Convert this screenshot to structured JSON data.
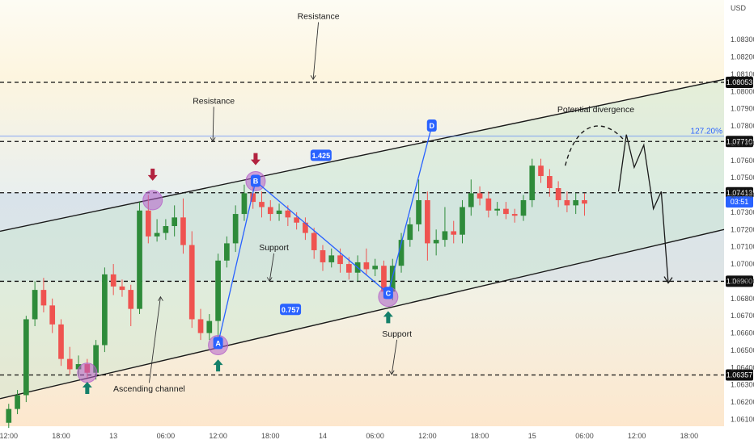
{
  "chart_data": {
    "type": "candlestick",
    "currency_label": "USD",
    "colors": {
      "up": "#2e8b3a",
      "down": "#ef5350",
      "pattern_line": "#2962ff",
      "channel_line": "#1a1a1a",
      "pivot_circle": "#b45fc8",
      "arrow_up": "#15806a",
      "arrow_down": "#b2233f",
      "countdown_badge": "#2962ff",
      "fib_label": "#2962ff"
    },
    "x_axis": {
      "labels": [
        "12:00",
        "18:00",
        "13",
        "06:00",
        "12:00",
        "18:00",
        "14",
        "06:00",
        "12:00",
        "18:00",
        "15",
        "06:00",
        "12:00",
        "18:00"
      ],
      "hour_offsets": [
        0,
        6,
        12,
        18,
        24,
        30,
        36,
        42,
        48,
        54,
        60,
        66,
        72,
        78
      ],
      "range_hours": [
        -1,
        82
      ]
    },
    "y_axis": {
      "range": [
        1.0606,
        1.0853
      ],
      "ticks": [
        "1.06100",
        "1.06200",
        "1.06300",
        "1.06400",
        "1.06500",
        "1.06600",
        "1.06700",
        "1.06800",
        "1.06900",
        "1.07000",
        "1.07100",
        "1.07200",
        "1.07300",
        "1.07400",
        "1.07500",
        "1.07600",
        "1.07700",
        "1.07800",
        "1.07900",
        "1.08000",
        "1.08100",
        "1.08200",
        "1.08300"
      ],
      "tick_values": [
        1.061,
        1.062,
        1.063,
        1.064,
        1.065,
        1.066,
        1.067,
        1.068,
        1.069,
        1.07,
        1.071,
        1.072,
        1.073,
        1.074,
        1.075,
        1.076,
        1.077,
        1.078,
        1.079,
        1.08,
        1.081,
        1.082,
        1.083
      ]
    },
    "levels": [
      {
        "price": 1.08053,
        "label": "1.08053"
      },
      {
        "price": 1.0771,
        "label": "1.07710"
      },
      {
        "price": 1.07413,
        "label": "1.07413"
      },
      {
        "price": 1.069,
        "label": "1.06900"
      },
      {
        "price": 1.06357,
        "label": "1.06357"
      }
    ],
    "current_price": {
      "price": 1.0736,
      "countdown": "03:51"
    },
    "fib_extension": {
      "label": "127.20%",
      "price": 1.07755
    },
    "channel": {
      "upper": [
        {
          "t": -1,
          "p": 1.0719
        },
        {
          "t": 82,
          "p": 1.0807
        }
      ],
      "lower": [
        {
          "t": -1,
          "p": 1.0622
        },
        {
          "t": 82,
          "p": 1.072
        }
      ]
    },
    "abcd": [
      {
        "label": "A",
        "t": 24,
        "p": 1.0654
      },
      {
        "label": "B",
        "t": 28.3,
        "p": 1.0748
      },
      {
        "label": "C",
        "t": 43.5,
        "p": 1.0683
      },
      {
        "label": "D",
        "t": 48.5,
        "p": 1.078
      }
    ],
    "ratios": [
      {
        "label": "1.425",
        "t": 35.8,
        "p": 1.0763
      },
      {
        "label": "0.757",
        "t": 32.3,
        "p": 1.06737
      }
    ],
    "pivots": [
      {
        "t": 9,
        "p": 1.0637
      },
      {
        "t": 16.5,
        "p": 1.0737
      },
      {
        "t": 24,
        "p": 1.0653
      },
      {
        "t": 28.3,
        "p": 1.0748
      },
      {
        "t": 43.5,
        "p": 1.0681
      }
    ],
    "signal_arrows": [
      {
        "dir": "up",
        "t": 9,
        "p": 1.0628
      },
      {
        "dir": "down",
        "t": 16.5,
        "p": 1.0752
      },
      {
        "dir": "up",
        "t": 24,
        "p": 1.0641
      },
      {
        "dir": "down",
        "t": 28.3,
        "p": 1.0761
      },
      {
        "dir": "up",
        "t": 43.5,
        "p": 1.0669
      }
    ],
    "projection": [
      {
        "t": 69.9,
        "p": 1.0742
      },
      {
        "t": 70.8,
        "p": 1.0775
      },
      {
        "t": 71.7,
        "p": 1.0756
      },
      {
        "t": 72.8,
        "p": 1.0769
      },
      {
        "t": 73.9,
        "p": 1.0732
      },
      {
        "t": 74.8,
        "p": 1.0742
      },
      {
        "t": 75.6,
        "p": 1.0689
      }
    ],
    "divergence_arc": [
      {
        "t": 63.8,
        "p": 1.0757
      },
      {
        "t": 65.0,
        "p": 1.0782
      },
      {
        "t": 68.0,
        "p": 1.0786
      },
      {
        "t": 70.5,
        "p": 1.0772
      }
    ],
    "annotations": [
      {
        "text": "Resistance",
        "t": 35.5,
        "p": 1.0842,
        "arrow_to": {
          "t": 34.9,
          "p": 1.0807
        }
      },
      {
        "text": "Resistance",
        "t": 23.5,
        "p": 1.0793,
        "arrow_to": {
          "t": 23.4,
          "p": 1.0771
        }
      },
      {
        "text": "Support",
        "t": 30.4,
        "p": 1.0708,
        "arrow_to": {
          "t": 29.9,
          "p": 1.069
        }
      },
      {
        "text": "Support",
        "t": 44.5,
        "p": 1.0658,
        "arrow_to": {
          "t": 43.9,
          "p": 1.0636
        }
      },
      {
        "text": "Ascending channel",
        "t": 16.1,
        "p": 1.0626,
        "arrow_to": {
          "t": 17.4,
          "p": 1.0681
        }
      },
      {
        "text": "Potential divergence",
        "t": 67.3,
        "p": 1.0788,
        "arrow_to": null
      }
    ],
    "candles_per_hour": 1,
    "candles": [
      [
        1.0608,
        1.0616,
        1.0605,
        1.0619
      ],
      [
        1.0616,
        1.0624,
        1.0613,
        1.0627
      ],
      [
        1.0624,
        1.0668,
        1.062,
        1.067
      ],
      [
        1.0668,
        1.0685,
        1.0664,
        1.069
      ],
      [
        1.0685,
        1.0676,
        1.0672,
        1.0692
      ],
      [
        1.0676,
        1.0665,
        1.066,
        1.068
      ],
      [
        1.0665,
        1.0645,
        1.0641,
        1.0668
      ],
      [
        1.0645,
        1.0639,
        1.0636,
        1.0652
      ],
      [
        1.0639,
        1.0642,
        1.0635,
        1.0647
      ],
      [
        1.0642,
        1.0637,
        1.0634,
        1.0645
      ],
      [
        1.0637,
        1.0653,
        1.0633,
        1.0656
      ],
      [
        1.0653,
        1.0694,
        1.0649,
        1.0698
      ],
      [
        1.0694,
        1.0687,
        1.0682,
        1.07
      ],
      [
        1.0687,
        1.0685,
        1.0681,
        1.0691
      ],
      [
        1.0685,
        1.0674,
        1.0664,
        1.0688
      ],
      [
        1.0674,
        1.0731,
        1.0671,
        1.0736
      ],
      [
        1.0731,
        1.0716,
        1.0712,
        1.074
      ],
      [
        1.0716,
        1.0718,
        1.0713,
        1.0726
      ],
      [
        1.0718,
        1.0722,
        1.0714,
        1.0726
      ],
      [
        1.0722,
        1.0727,
        1.0716,
        1.0734
      ],
      [
        1.0727,
        1.0711,
        1.0706,
        1.0738
      ],
      [
        1.0711,
        1.0668,
        1.0663,
        1.0719
      ],
      [
        1.0668,
        1.066,
        1.0656,
        1.0674
      ],
      [
        1.066,
        1.0667,
        1.0656,
        1.0671
      ],
      [
        1.0667,
        1.0702,
        1.0652,
        1.0706
      ],
      [
        1.0702,
        1.0712,
        1.0698,
        1.0716
      ],
      [
        1.0712,
        1.0729,
        1.0707,
        1.0734
      ],
      [
        1.0729,
        1.0741,
        1.0725,
        1.0746
      ],
      [
        1.0741,
        1.0736,
        1.0732,
        1.0751
      ],
      [
        1.0736,
        1.0733,
        1.0727,
        1.0742
      ],
      [
        1.0733,
        1.0729,
        1.0725,
        1.0737
      ],
      [
        1.0729,
        1.0731,
        1.0725,
        1.0735
      ],
      [
        1.0731,
        1.0727,
        1.0722,
        1.0734
      ],
      [
        1.0727,
        1.0724,
        1.072,
        1.073
      ],
      [
        1.0724,
        1.0718,
        1.0714,
        1.0727
      ],
      [
        1.0718,
        1.0708,
        1.0703,
        1.0721
      ],
      [
        1.0708,
        1.0701,
        1.0696,
        1.0711
      ],
      [
        1.0701,
        1.0705,
        1.0698,
        1.0709
      ],
      [
        1.0705,
        1.07,
        1.0695,
        1.0709
      ],
      [
        1.07,
        1.0695,
        1.0691,
        1.0704
      ],
      [
        1.0695,
        1.0701,
        1.069,
        1.0705
      ],
      [
        1.0701,
        1.0697,
        1.0694,
        1.0709
      ],
      [
        1.0697,
        1.0699,
        1.0693,
        1.0703
      ],
      [
        1.0699,
        1.0684,
        1.068,
        1.0702
      ],
      [
        1.0684,
        1.0699,
        1.0679,
        1.0703
      ],
      [
        1.0699,
        1.0714,
        1.0695,
        1.0718
      ],
      [
        1.0714,
        1.0723,
        1.071,
        1.0727
      ],
      [
        1.0723,
        1.0737,
        1.0719,
        1.0749
      ],
      [
        1.0737,
        1.0712,
        1.0702,
        1.0742
      ],
      [
        1.0712,
        1.0714,
        1.0705,
        1.072
      ],
      [
        1.0714,
        1.0719,
        1.071,
        1.0733
      ],
      [
        1.0719,
        1.0717,
        1.0712,
        1.0725
      ],
      [
        1.0717,
        1.0733,
        1.0712,
        1.0737
      ],
      [
        1.0733,
        1.0741,
        1.0728,
        1.0749
      ],
      [
        1.0741,
        1.0738,
        1.0734,
        1.0745
      ],
      [
        1.0738,
        1.0731,
        1.0727,
        1.0742
      ],
      [
        1.0731,
        1.0732,
        1.0728,
        1.0736
      ],
      [
        1.0732,
        1.0729,
        1.0726,
        1.0736
      ],
      [
        1.0729,
        1.0728,
        1.0724,
        1.0732
      ],
      [
        1.0728,
        1.0737,
        1.0725,
        1.074
      ],
      [
        1.0737,
        1.0757,
        1.0733,
        1.0761
      ],
      [
        1.0757,
        1.0751,
        1.0747,
        1.0761
      ],
      [
        1.0751,
        1.0744,
        1.0739,
        1.0755
      ],
      [
        1.0744,
        1.0737,
        1.0733,
        1.0748
      ],
      [
        1.0737,
        1.0734,
        1.073,
        1.0742
      ],
      [
        1.0734,
        1.0737,
        1.0729,
        1.0741
      ],
      [
        1.0737,
        1.0735,
        1.0728,
        1.0741
      ]
    ]
  }
}
